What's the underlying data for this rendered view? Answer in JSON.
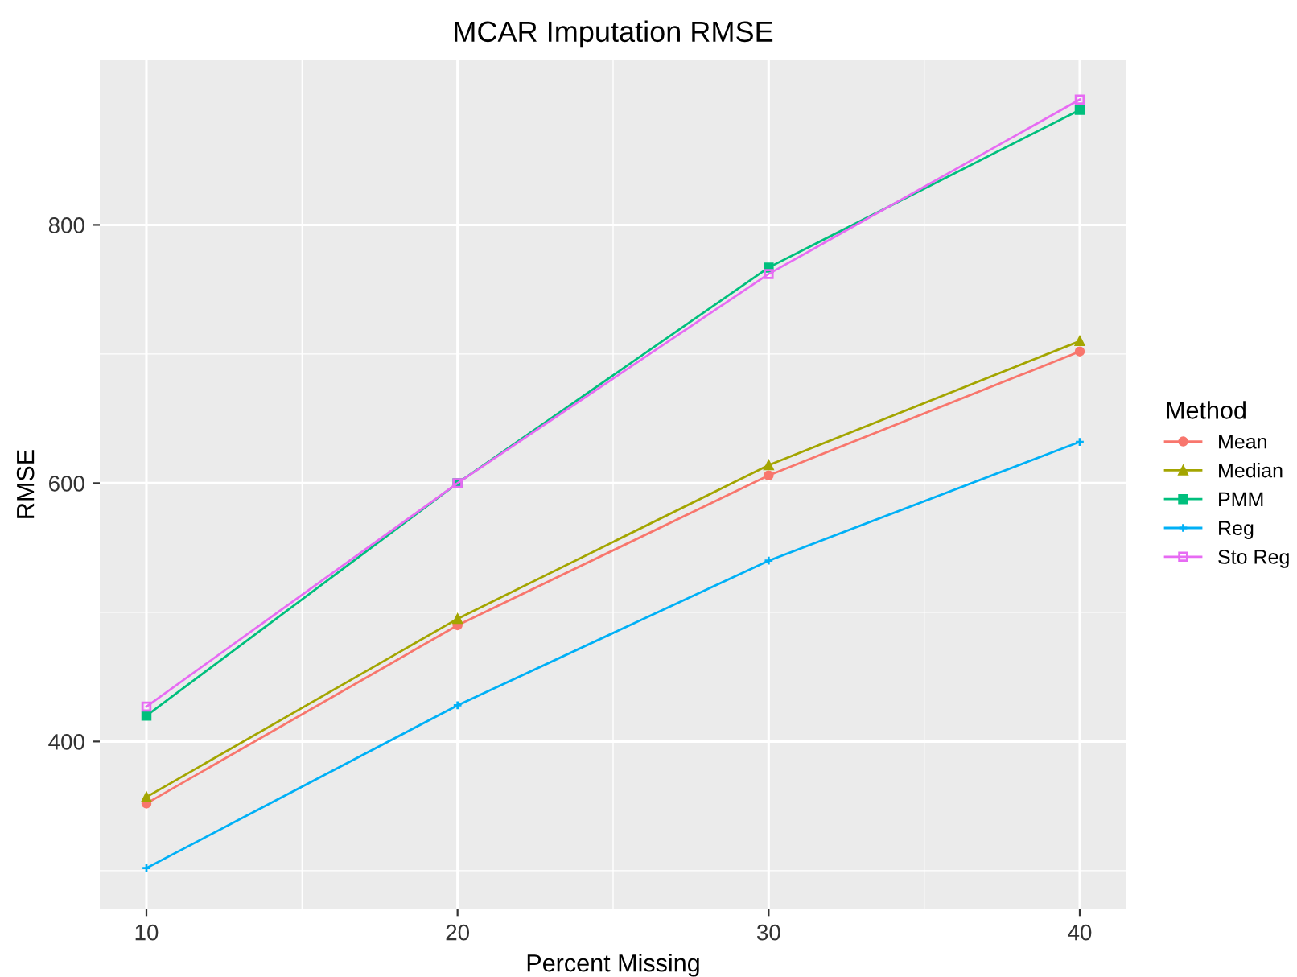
{
  "chart_data": {
    "type": "line",
    "title": "MCAR Imputation RMSE",
    "xlabel": "Percent Missing",
    "ylabel": "RMSE",
    "legend_title": "Method",
    "x": [
      10,
      20,
      30,
      40
    ],
    "series": [
      {
        "name": "Mean",
        "color": "#f8766d",
        "marker": "circle",
        "values": [
          352,
          490,
          606,
          702
        ]
      },
      {
        "name": "Median",
        "color": "#a3a500",
        "marker": "triangle",
        "values": [
          357,
          495,
          614,
          710
        ]
      },
      {
        "name": "PMM",
        "color": "#00bf7d",
        "marker": "square",
        "values": [
          420,
          600,
          767,
          889
        ]
      },
      {
        "name": "Reg",
        "color": "#00b0f6",
        "marker": "cross",
        "values": [
          302,
          428,
          540,
          632
        ]
      },
      {
        "name": "Sto Reg",
        "color": "#e76bf3",
        "marker": "square",
        "values": [
          427,
          600,
          762,
          897
        ]
      }
    ],
    "xlim": [
      8.5,
      41.5
    ],
    "xticks": [
      10,
      20,
      30,
      40
    ],
    "ylim": [
      270,
      928
    ],
    "yticks": [
      400,
      600,
      800
    ],
    "grid": true,
    "legend": "right",
    "line_style": "solid"
  }
}
